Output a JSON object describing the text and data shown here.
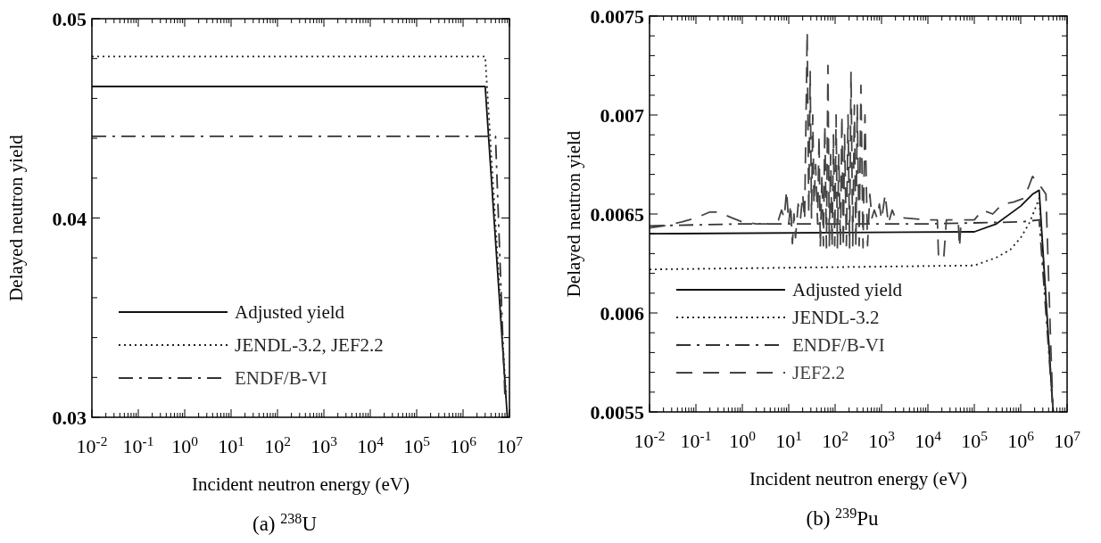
{
  "chart_data": [
    {
      "type": "line",
      "title": "(a) $^{238}$U",
      "xlabel": "Incident neutron energy (eV)",
      "ylabel": "Delayed neutron yield",
      "log": "x",
      "legend": "bottom left",
      "xlim": [
        0.01,
        10000000
      ],
      "xticks": [
        {
          "value": 0.01,
          "label": "10$^{-2}$"
        },
        {
          "value": 0.1,
          "label": "10$^{-1}$"
        },
        {
          "value": 1,
          "label": "10$^{0}$"
        },
        {
          "value": 10,
          "label": "10$^{1}$"
        },
        {
          "value": 100,
          "label": "10$^{2}$"
        },
        {
          "value": 1000,
          "label": "10$^{3}$"
        },
        {
          "value": 10000,
          "label": "10$^{4}$"
        },
        {
          "value": 100000,
          "label": "10$^{5}$"
        },
        {
          "value": 1000000,
          "label": "10$^{6}$"
        },
        {
          "value": 10000000,
          "label": "10$^{7}$"
        }
      ],
      "ylim": [
        0.03,
        0.05
      ],
      "yticks": [
        0.03,
        {
          "value": 0.032,
          "label": null
        },
        {
          "value": 0.034,
          "label": null
        },
        {
          "value": 0.036,
          "label": null
        },
        {
          "value": 0.038,
          "label": null
        },
        0.04,
        {
          "value": 0.042,
          "label": null
        },
        {
          "value": 0.044,
          "label": null
        },
        {
          "value": 0.046,
          "label": null
        },
        {
          "value": 0.048,
          "label": null
        },
        0.05
      ],
      "series": [
        {
          "name": "Adjusted yield",
          "color": "#111111",
          "line_style": "solid",
          "x": [
            0.01,
            3000000,
            9000000
          ],
          "values": [
            0.0466,
            0.0466,
            0.03
          ]
        },
        {
          "name": "JENDL-3.2, JEF2.2",
          "color": "#222222",
          "line_style": "dotted",
          "x": [
            0.01,
            3000000,
            8500000
          ],
          "values": [
            0.0481,
            0.0481,
            0.031
          ]
        },
        {
          "name": "ENDF/B-VI",
          "color": "#333333",
          "line_style": "dashdot",
          "x": [
            0.01,
            5000000,
            8000000
          ],
          "values": [
            0.0441,
            0.0441,
            0.031
          ]
        }
      ]
    },
    {
      "type": "line",
      "title": "(b) $^{239}$Pu",
      "xlabel": "Incident neutron energy (eV)",
      "ylabel": "Delayed neutron yield",
      "log": "x",
      "legend": "bottom left",
      "xlim": [
        0.01,
        10000000
      ],
      "xticks": [
        {
          "value": 0.01,
          "label": "10$^{-2}$"
        },
        {
          "value": 0.1,
          "label": "10$^{-1}$"
        },
        {
          "value": 1,
          "label": "10$^{0}$"
        },
        {
          "value": 10,
          "label": "10$^{1}$"
        },
        {
          "value": 100,
          "label": "10$^{2}$"
        },
        {
          "value": 1000,
          "label": "10$^{3}$"
        },
        {
          "value": 10000,
          "label": "10$^{4}$"
        },
        {
          "value": 100000,
          "label": "10$^{5}$"
        },
        {
          "value": 1000000,
          "label": "10$^{6}$"
        },
        {
          "value": 10000000,
          "label": "10$^{7}$"
        }
      ],
      "ylim": [
        0.0055,
        0.0075
      ],
      "yticks": [
        0.0055,
        {
          "value": 0.0056,
          "label": null
        },
        {
          "value": 0.0057,
          "label": null
        },
        {
          "value": 0.0058,
          "label": null
        },
        {
          "value": 0.0059,
          "label": null
        },
        0.006,
        {
          "value": 0.0061,
          "label": null
        },
        {
          "value": 0.0062,
          "label": null
        },
        {
          "value": 0.0063,
          "label": null
        },
        {
          "value": 0.0064,
          "label": null
        },
        0.0065,
        {
          "value": 0.0066,
          "label": null
        },
        {
          "value": 0.0067,
          "label": null
        },
        {
          "value": 0.0068,
          "label": null
        },
        {
          "value": 0.0069,
          "label": null
        },
        0.007,
        {
          "value": 0.0071,
          "label": null
        },
        {
          "value": 0.0072,
          "label": null
        },
        {
          "value": 0.0073,
          "label": null
        },
        {
          "value": 0.0074,
          "label": null
        },
        0.0075
      ],
      "series": [
        {
          "name": "Adjusted yield",
          "color": "#111111",
          "line_style": "solid",
          "x": [
            0.01,
            100000,
            300000,
            1000000,
            1800000,
            2500000,
            5000000
          ],
          "values": [
            0.0064,
            0.00641,
            0.00645,
            0.00654,
            0.0066,
            0.00662,
            0.0055
          ]
        },
        {
          "name": "JENDL-3.2",
          "color": "#222222",
          "line_style": "dotted",
          "x": [
            0.01,
            100000,
            300000,
            600000,
            1000000,
            1500000,
            2000000,
            2500000,
            5000000
          ],
          "values": [
            0.00622,
            0.00624,
            0.00628,
            0.00632,
            0.00638,
            0.00645,
            0.00652,
            0.00658,
            0.0055
          ]
        },
        {
          "name": "ENDF/B-VI",
          "color": "#333333",
          "line_style": "dashdot",
          "x": [
            0.01,
            1,
            100,
            10000,
            1000000,
            2500000,
            5000000
          ],
          "values": [
            0.00644,
            0.00645,
            0.00645,
            0.00645,
            0.00646,
            0.00647,
            0.0055
          ]
        },
        {
          "name": "JEF2.2",
          "color": "#444444",
          "line_style": "dashed",
          "x": [
            0.01,
            0.02,
            0.05,
            0.1,
            0.2,
            0.3,
            0.6,
            1,
            2,
            4,
            6,
            7,
            8,
            9,
            10,
            11,
            12,
            13,
            14,
            16,
            18,
            20,
            22,
            25,
            27,
            29,
            31,
            33,
            35,
            38,
            42,
            45,
            48,
            52,
            56,
            60,
            65,
            70,
            75,
            80,
            86,
            92,
            98,
            105,
            112,
            120,
            130,
            140,
            150,
            160,
            175,
            190,
            205,
            220,
            240,
            260,
            280,
            300,
            330,
            360,
            400,
            440,
            500,
            560,
            620,
            700,
            800,
            900,
            1000,
            1200,
            1400,
            1700,
            2000,
            3000,
            10000,
            16000,
            17000,
            22000,
            25000,
            45000,
            48000,
            52000,
            100000,
            150000,
            250000,
            400000,
            700000,
            1200000,
            1800000,
            2500000,
            3500000,
            4500000,
            5000000
          ],
          "values": [
            0.00643,
            0.00644,
            0.00646,
            0.00648,
            0.00651,
            0.00651,
            0.00648,
            0.00646,
            0.00645,
            0.00645,
            0.00647,
            0.00652,
            0.00648,
            0.00662,
            0.00645,
            0.00655,
            0.00635,
            0.0065,
            0.00638,
            0.00655,
            0.00648,
            0.0066,
            0.00647,
            0.00742,
            0.0065,
            0.00722,
            0.00648,
            0.007,
            0.00655,
            0.00675,
            0.00645,
            0.0069,
            0.00633,
            0.0067,
            0.00634,
            0.00695,
            0.00633,
            0.00725,
            0.00634,
            0.0068,
            0.00633,
            0.0069,
            0.00634,
            0.007,
            0.00633,
            0.0068,
            0.00634,
            0.007,
            0.00633,
            0.0069,
            0.00634,
            0.007,
            0.00633,
            0.00722,
            0.00634,
            0.00705,
            0.00633,
            0.00705,
            0.00634,
            0.00715,
            0.00633,
            0.007,
            0.00634,
            0.0066,
            0.00648,
            0.00652,
            0.00648,
            0.00655,
            0.00647,
            0.0066,
            0.00645,
            0.00652,
            0.00648,
            0.00648,
            0.00647,
            0.00647,
            0.00627,
            0.00628,
            0.00647,
            0.00647,
            0.00633,
            0.00647,
            0.00647,
            0.00652,
            0.0065,
            0.00655,
            0.00656,
            0.00658,
            0.00669,
            0.00665,
            0.0066,
            0.0058,
            0.0055
          ]
        }
      ]
    }
  ]
}
